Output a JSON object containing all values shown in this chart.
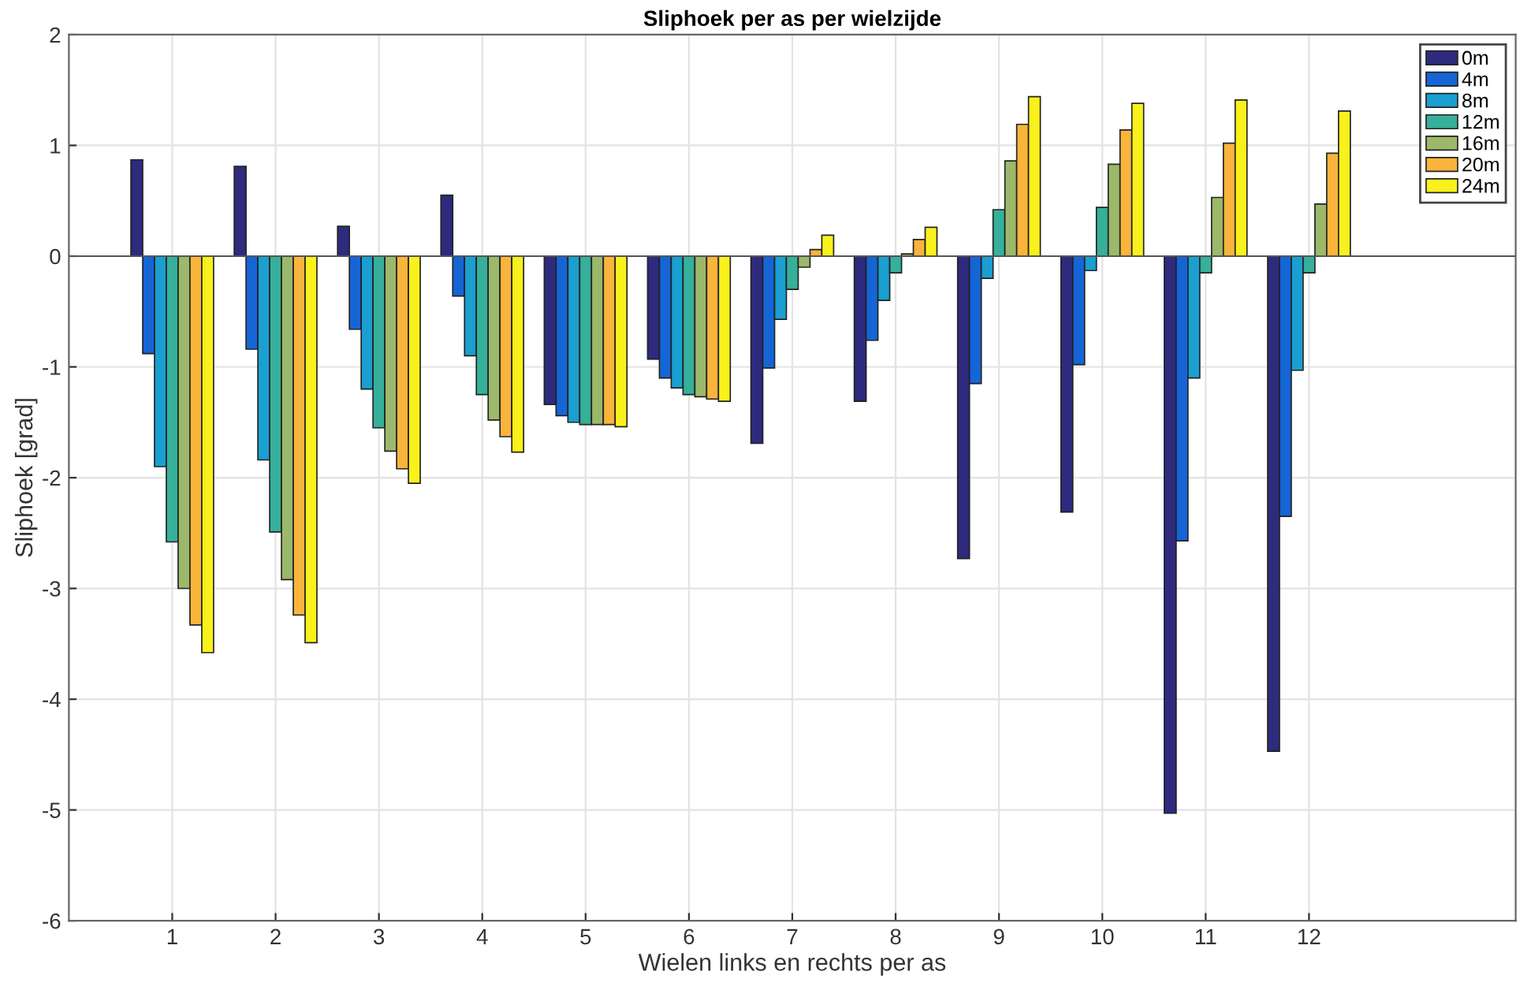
{
  "chart_data": {
    "type": "bar",
    "title": "Sliphoek per as per wielzijde",
    "xlabel": "Wielen links en rechts per as",
    "ylabel": "Sliphoek [grad]",
    "x": [
      1,
      2,
      3,
      4,
      5,
      6,
      7,
      8,
      9,
      10,
      11,
      12
    ],
    "xlim": [
      0,
      14
    ],
    "xticks": [
      1,
      2,
      3,
      4,
      5,
      6,
      7,
      8,
      9,
      10,
      11,
      12
    ],
    "ylim": [
      -6,
      2
    ],
    "yticks": [
      -6,
      -5,
      -4,
      -3,
      -2,
      -1,
      0,
      1,
      2
    ],
    "grid": true,
    "legend": "top right",
    "series": [
      {
        "name": "0m",
        "color": "#2e2a7e",
        "values": [
          0.87,
          0.81,
          0.27,
          0.55,
          -1.34,
          -0.93,
          -1.69,
          -1.31,
          -2.73,
          -2.31,
          -5.03,
          -4.47
        ]
      },
      {
        "name": "4m",
        "color": "#1565d6",
        "values": [
          -0.88,
          -0.84,
          -0.66,
          -0.36,
          -1.44,
          -1.1,
          -1.01,
          -0.76,
          -1.15,
          -0.98,
          -2.57,
          -2.35
        ]
      },
      {
        "name": "8m",
        "color": "#1a9fd0",
        "values": [
          -1.9,
          -1.84,
          -1.2,
          -0.9,
          -1.5,
          -1.19,
          -0.57,
          -0.4,
          -0.2,
          -0.13,
          -1.1,
          -1.03
        ]
      },
      {
        "name": "12m",
        "color": "#36b09a",
        "values": [
          -2.58,
          -2.49,
          -1.55,
          -1.25,
          -1.52,
          -1.25,
          -0.3,
          -0.15,
          0.42,
          0.44,
          -0.15,
          -0.15
        ]
      },
      {
        "name": "16m",
        "color": "#9cb86a",
        "values": [
          -3.0,
          -2.92,
          -1.76,
          -1.48,
          -1.52,
          -1.27,
          -0.1,
          0.02,
          0.86,
          0.83,
          0.53,
          0.47
        ]
      },
      {
        "name": "20m",
        "color": "#f9b43c",
        "values": [
          -3.33,
          -3.24,
          -1.92,
          -1.63,
          -1.52,
          -1.29,
          0.06,
          0.15,
          1.19,
          1.14,
          1.02,
          0.93
        ]
      },
      {
        "name": "24m",
        "color": "#f9f11b",
        "values": [
          -3.58,
          -3.49,
          -2.05,
          -1.77,
          -1.54,
          -1.31,
          0.19,
          0.26,
          1.44,
          1.38,
          1.41,
          1.31
        ]
      }
    ]
  }
}
